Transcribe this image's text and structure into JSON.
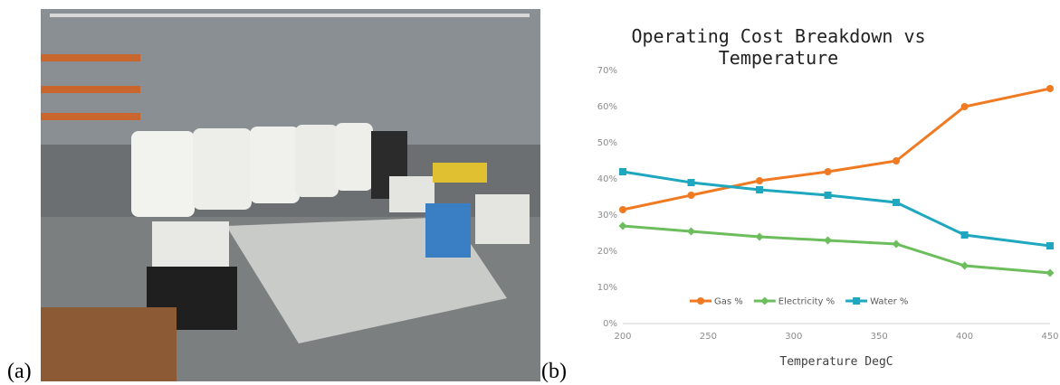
{
  "panel_labels": [
    "(a)",
    "(b)"
  ],
  "chart_data": {
    "type": "line",
    "title": "Operating Cost Breakdown vs Temperature",
    "x_label": "Temperature DegC",
    "x": [
      200,
      240,
      280,
      320,
      360,
      400,
      450
    ],
    "series": [
      {
        "name": "Gas %",
        "color": "#f07a22",
        "marker": "circle",
        "values": [
          31.5,
          35.5,
          39.5,
          42,
          45,
          60,
          65
        ]
      },
      {
        "name": "Electricity %",
        "color": "#6cbd5c",
        "marker": "diamond",
        "values": [
          27,
          25.5,
          24,
          23,
          22,
          16,
          14
        ]
      },
      {
        "name": "Water %",
        "color": "#1ea7bf",
        "marker": "square",
        "values": [
          42,
          39,
          37,
          35.5,
          33.5,
          24.5,
          21.5
        ]
      }
    ],
    "xlim": [
      200,
      450
    ],
    "xticks": [
      200,
      250,
      300,
      350,
      400,
      450
    ],
    "ylim": [
      0,
      70
    ],
    "yticks": [
      {
        "value": 0,
        "label": "0%"
      },
      {
        "value": 10,
        "label": "10%"
      },
      {
        "value": 20,
        "label": "20%"
      },
      {
        "value": 30,
        "label": "30%"
      },
      {
        "value": 40,
        "label": "40%"
      },
      {
        "value": 50,
        "label": "50%"
      },
      {
        "value": 60,
        "label": "60%"
      },
      {
        "value": 70,
        "label": "70%"
      }
    ],
    "grid": false,
    "legend": "bottom"
  }
}
